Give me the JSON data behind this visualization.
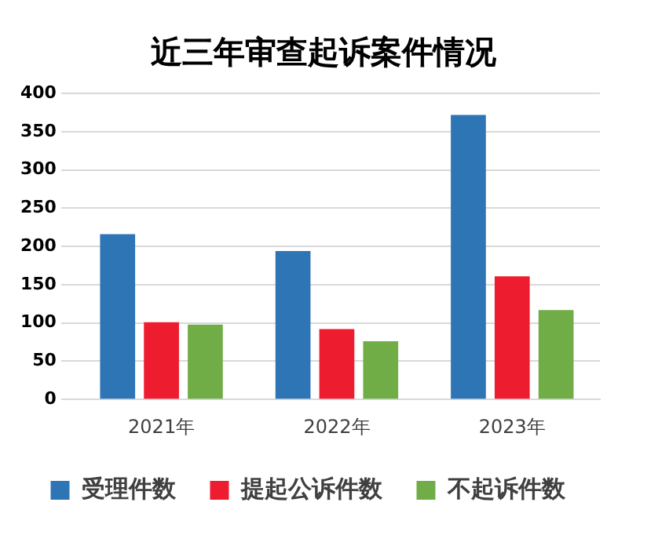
{
  "chart_data": {
    "type": "bar",
    "title": "近三年审查起诉案件情况",
    "categories": [
      "2021年",
      "2022年",
      "2023年"
    ],
    "series": [
      {
        "name": "受理件数",
        "color": "#2e75b6",
        "values": [
          216,
          194,
          372
        ]
      },
      {
        "name": "提起公诉件数",
        "color": "#ed1c2e",
        "values": [
          101,
          92,
          161
        ]
      },
      {
        "name": "不起诉件数",
        "color": "#70ad47",
        "values": [
          98,
          76,
          117
        ]
      }
    ],
    "ylim": [
      0,
      400
    ],
    "yticks": [
      0,
      50,
      100,
      150,
      200,
      250,
      300,
      350,
      400
    ],
    "grid": "y",
    "legend": "bottom"
  }
}
